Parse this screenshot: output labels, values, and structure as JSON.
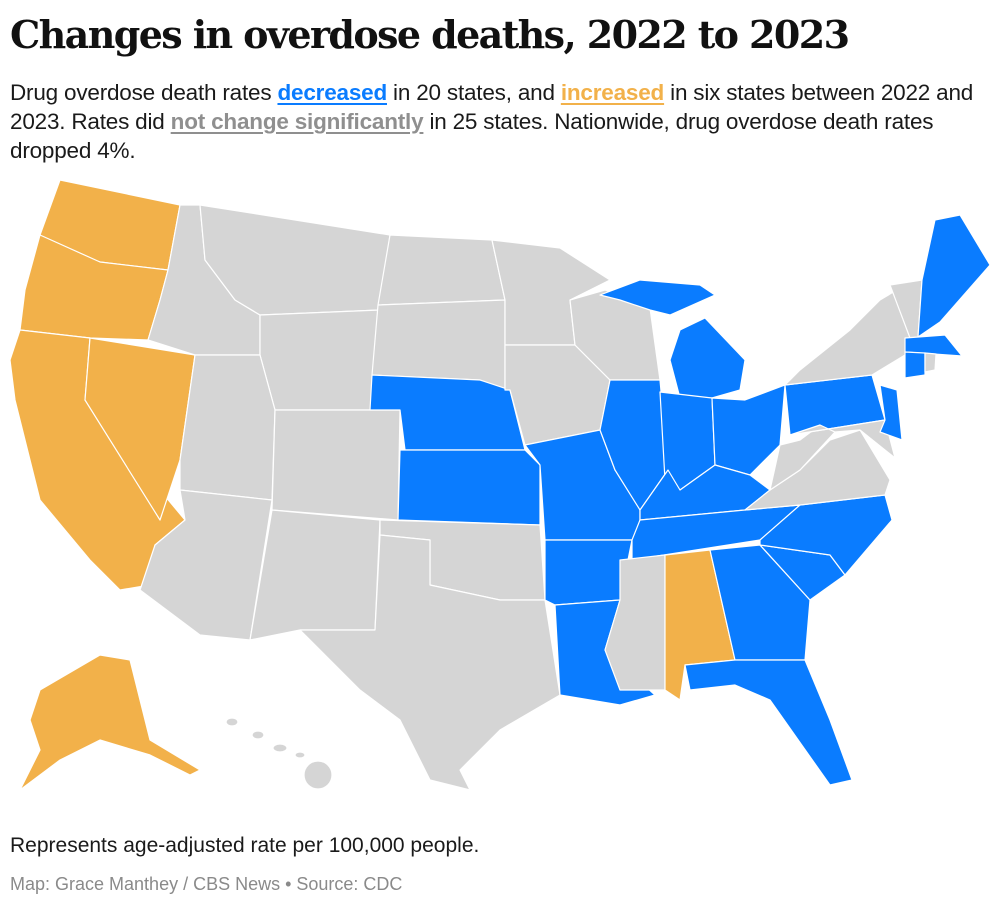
{
  "title": "Changes in overdose deaths, 2022 to 2023",
  "description": {
    "part1": "Drug overdose death rates ",
    "decreased": "decreased",
    "part2": " in 20 states, and ",
    "increased": "increased",
    "part3": " in six states between 2022 and 2023. Rates did ",
    "no_change": "not change significantly",
    "part4": " in 25 states. Nationwide, drug overdose death rates dropped 4%."
  },
  "colors": {
    "decreased": "#0a7cff",
    "increased": "#f2b14a",
    "no_change": "#d5d5d5",
    "no_change_text": "#8f8f8f"
  },
  "states": {
    "WA": "increased",
    "OR": "increased",
    "CA": "increased",
    "NV": "increased",
    "AK": "increased",
    "AL": "increased",
    "NE": "decreased",
    "KS": "decreased",
    "MO": "decreased",
    "AR": "decreased",
    "LA": "decreased",
    "IL": "decreased",
    "IN": "decreased",
    "MI": "decreased",
    "MI2": "decreased",
    "OH": "decreased",
    "KY": "decreased",
    "TN": "decreased",
    "NC": "decreased",
    "SC": "decreased",
    "GA": "decreased",
    "FL": "decreased",
    "PA": "decreased",
    "NJ": "decreased",
    "CT": "decreased",
    "MA": "decreased",
    "ME": "decreased",
    "ID": "no_change",
    "MT": "no_change",
    "WY": "no_change",
    "UT": "no_change",
    "AZ": "no_change",
    "CO": "no_change",
    "NM": "no_change",
    "ND": "no_change",
    "SD": "no_change",
    "OK": "no_change",
    "TX": "no_change",
    "MN": "no_change",
    "IA": "no_change",
    "WI": "no_change",
    "MS": "no_change",
    "VA": "no_change",
    "WV": "no_change",
    "NY": "no_change",
    "MD": "no_change",
    "VTNH": "no_change",
    "RI": "no_change",
    "HI": "no_change"
  },
  "note": "Represents age-adjusted rate per 100,000 people.",
  "credit": "Map: Grace Manthey / CBS News • Source: CDC"
}
